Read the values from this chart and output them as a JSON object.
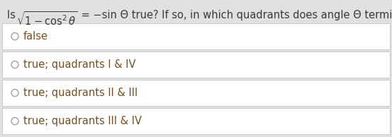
{
  "background_color": "#e0e0e0",
  "question_prefix": "Is ",
  "math_part": "$\\sqrt{1-\\cos^2\\theta}$",
  "question_rest": " = −sin Θ true? If so, in which quadrants does angle Θ terminate?",
  "options": [
    "false",
    "true; quadrants I & IV",
    "true; quadrants II & III",
    "true; quadrants III & IV"
  ],
  "option_bg": "#ffffff",
  "option_border": "#c8c8c8",
  "option_bg_gap": "#e0e0e0",
  "question_color": "#3a3a3a",
  "option_text_color": "#7a4f1a",
  "radio_color": "#a0a0a0",
  "question_fontsize": 10.5,
  "option_fontsize": 10.5,
  "fig_width": 5.53,
  "fig_height": 1.94,
  "dpi": 100
}
